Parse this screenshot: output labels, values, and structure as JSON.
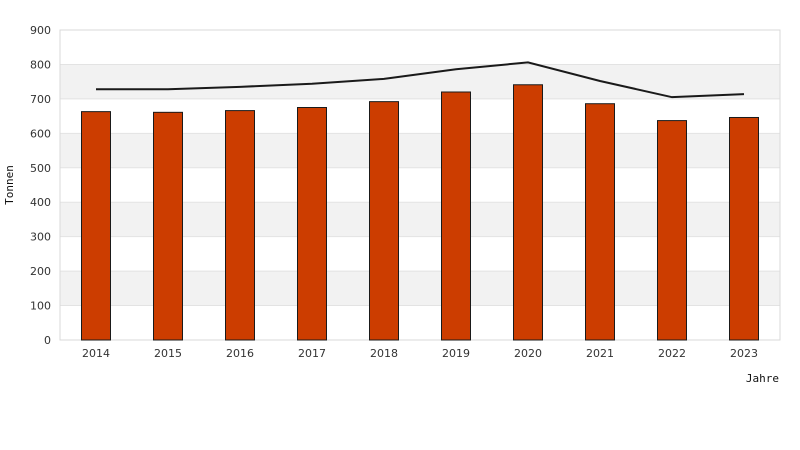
{
  "chart_data": {
    "type": "bar",
    "categories": [
      "2014",
      "2015",
      "2016",
      "2017",
      "2018",
      "2019",
      "2020",
      "2021",
      "2022",
      "2023"
    ],
    "series": [
      {
        "type": "bar",
        "values": [
          663,
          661,
          666,
          675,
          692,
          720,
          741,
          686,
          637,
          646
        ],
        "color": "#cc3d00"
      },
      {
        "type": "line",
        "values": [
          728,
          728,
          735,
          744,
          758,
          786,
          806,
          752,
          705,
          714
        ],
        "color": "#1a1a1a"
      }
    ],
    "xlabel": "Jahre",
    "ylabel": "Tonnen",
    "ylim": [
      0,
      900
    ],
    "yticks": [
      0,
      100,
      200,
      300,
      400,
      500,
      600,
      700,
      800,
      900
    ],
    "grid": true,
    "band_colors": [
      "#ffffff",
      "#f2f2f2"
    ]
  }
}
